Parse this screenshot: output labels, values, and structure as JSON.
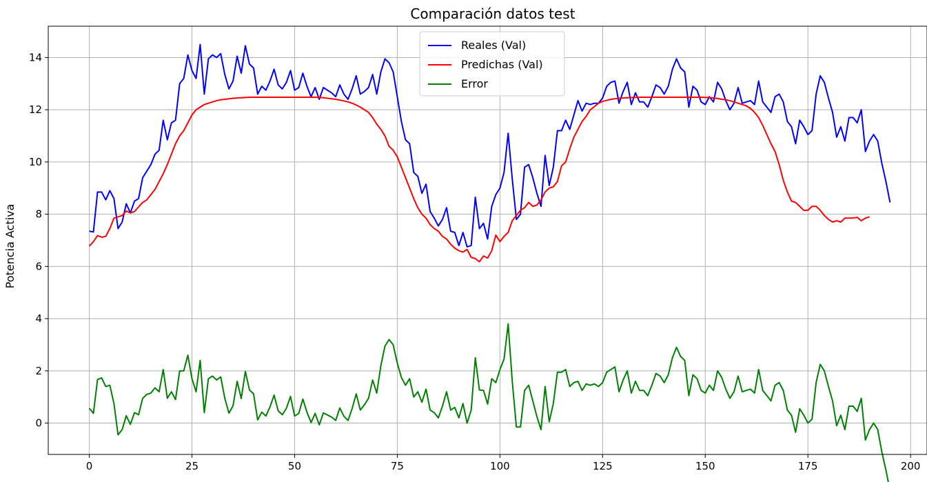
{
  "chart_data": {
    "type": "line",
    "title": "Comparación datos test",
    "xlabel": "",
    "ylabel": "Potencia Activa",
    "xlim": [
      -10,
      204
    ],
    "ylim": [
      -1.2,
      15.2
    ],
    "xticks": [
      0,
      25,
      50,
      75,
      100,
      125,
      150,
      175,
      200
    ],
    "yticks": [
      0,
      2,
      4,
      6,
      8,
      10,
      12,
      14
    ],
    "grid": true,
    "legend": "top-center",
    "series": [
      {
        "name": "Reales (Val)",
        "color": "#0000ff",
        "values": [
          7.35,
          7.32,
          8.85,
          8.85,
          8.55,
          8.9,
          8.6,
          7.45,
          7.7,
          8.4,
          8.05,
          8.5,
          8.6,
          9.4,
          9.65,
          9.9,
          10.3,
          10.45,
          11.6,
          10.85,
          11.5,
          11.6,
          13.0,
          13.2,
          14.1,
          13.5,
          13.2,
          14.5,
          12.6,
          13.95,
          14.1,
          14.0,
          14.15,
          13.35,
          12.8,
          13.1,
          14.05,
          13.4,
          14.45,
          13.75,
          13.6,
          12.6,
          12.9,
          12.75,
          13.1,
          13.55,
          12.95,
          12.8,
          13.05,
          13.5,
          12.75,
          12.85,
          13.4,
          12.9,
          12.5,
          12.85,
          12.4,
          12.85,
          12.75,
          12.65,
          12.5,
          12.95,
          12.6,
          12.4,
          12.8,
          13.3,
          12.6,
          12.7,
          12.85,
          13.35,
          12.6,
          13.45,
          13.95,
          13.8,
          13.45,
          12.5,
          11.55,
          10.85,
          10.7,
          9.6,
          9.45,
          8.8,
          9.15,
          8.1,
          7.85,
          7.55,
          7.8,
          8.25,
          7.35,
          7.3,
          6.8,
          7.3,
          6.75,
          6.8,
          8.65,
          7.45,
          7.65,
          7.05,
          8.3,
          8.75,
          9.0,
          9.6,
          11.1,
          9.35,
          7.8,
          8.0,
          9.8,
          9.9,
          9.4,
          8.8,
          8.3,
          10.25,
          9.1,
          9.8,
          11.2,
          11.2,
          11.6,
          11.25,
          11.8,
          12.35,
          11.95,
          12.25,
          12.2,
          12.25,
          12.25,
          12.45,
          12.9,
          13.05,
          13.1,
          12.25,
          12.7,
          13.05,
          12.2,
          12.65,
          12.3,
          12.3,
          12.1,
          12.5,
          12.95,
          12.85,
          12.6,
          12.9,
          13.55,
          13.95,
          13.6,
          13.45,
          12.1,
          12.9,
          12.75,
          12.3,
          12.2,
          12.5,
          12.3,
          13.05,
          12.8,
          12.35,
          12.0,
          12.25,
          12.85,
          12.25,
          12.3,
          12.35,
          12.2,
          13.1,
          12.3,
          12.1,
          11.9,
          12.5,
          12.6,
          12.3,
          11.55,
          11.35,
          10.7,
          11.6,
          11.35,
          11.05,
          11.2,
          12.6,
          13.3,
          13.05,
          12.45,
          11.9,
          10.95,
          11.35,
          10.8,
          11.7,
          11.7,
          11.5,
          12.0,
          10.4,
          10.8,
          11.05,
          10.8,
          9.95,
          9.25,
          8.45
        ]
      },
      {
        "name": "Predichas (Val)",
        "color": "#ff0000",
        "values": [
          6.78,
          6.95,
          7.18,
          7.12,
          7.15,
          7.45,
          7.85,
          7.9,
          7.95,
          8.12,
          8.05,
          8.1,
          8.28,
          8.45,
          8.55,
          8.75,
          8.95,
          9.25,
          9.55,
          9.9,
          10.3,
          10.7,
          11.0,
          11.2,
          11.5,
          11.8,
          12.0,
          12.1,
          12.2,
          12.25,
          12.3,
          12.35,
          12.38,
          12.4,
          12.42,
          12.44,
          12.45,
          12.46,
          12.47,
          12.48,
          12.48,
          12.48,
          12.48,
          12.48,
          12.48,
          12.48,
          12.48,
          12.48,
          12.48,
          12.48,
          12.48,
          12.48,
          12.48,
          12.48,
          12.48,
          12.48,
          12.47,
          12.46,
          12.44,
          12.42,
          12.4,
          12.37,
          12.34,
          12.3,
          12.25,
          12.18,
          12.1,
          12.0,
          11.9,
          11.7,
          11.45,
          11.25,
          11.0,
          10.6,
          10.45,
          10.2,
          9.8,
          9.4,
          9.0,
          8.6,
          8.25,
          8.0,
          7.85,
          7.6,
          7.45,
          7.35,
          7.15,
          7.05,
          6.85,
          6.7,
          6.6,
          6.55,
          6.65,
          6.35,
          6.3,
          6.18,
          6.4,
          6.32,
          6.6,
          7.2,
          6.95,
          7.15,
          7.3,
          7.75,
          7.95,
          8.15,
          8.25,
          8.45,
          8.3,
          8.35,
          8.55,
          8.85,
          9.0,
          9.05,
          9.25,
          9.85,
          10.0,
          10.5,
          10.95,
          11.25,
          11.55,
          11.75,
          12.0,
          12.12,
          12.25,
          12.32,
          12.36,
          12.4,
          12.42,
          12.44,
          12.45,
          12.46,
          12.47,
          12.47,
          12.48,
          12.48,
          12.48,
          12.48,
          12.48,
          12.48,
          12.48,
          12.48,
          12.48,
          12.48,
          12.48,
          12.48,
          12.48,
          12.48,
          12.48,
          12.48,
          12.47,
          12.47,
          12.45,
          12.43,
          12.4,
          12.38,
          12.35,
          12.3,
          12.25,
          12.2,
          12.15,
          12.05,
          11.9,
          11.7,
          11.4,
          11.05,
          10.7,
          10.4,
          9.9,
          9.3,
          8.85,
          8.5,
          8.45,
          8.3,
          8.15,
          8.15,
          8.3,
          8.3,
          8.15,
          7.95,
          7.8,
          7.7,
          7.75,
          7.7,
          7.85,
          7.85,
          7.85,
          7.88,
          7.75,
          7.85,
          7.9
        ]
      },
      {
        "name": "Error",
        "color": "#008000",
        "values": [
          0.57,
          0.37,
          1.67,
          1.73,
          1.4,
          1.45,
          0.75,
          -0.45,
          -0.25,
          0.28,
          -0.05,
          0.4,
          0.32,
          0.95,
          1.1,
          1.15,
          1.35,
          1.2,
          2.05,
          0.95,
          1.2,
          0.9,
          2.0,
          2.0,
          2.6,
          1.7,
          1.2,
          2.4,
          0.4,
          1.7,
          1.8,
          1.65,
          1.77,
          0.95,
          0.38,
          0.66,
          1.6,
          0.94,
          1.98,
          1.27,
          1.12,
          0.12,
          0.42,
          0.27,
          0.62,
          1.07,
          0.47,
          0.32,
          0.57,
          1.02,
          0.27,
          0.37,
          0.92,
          0.42,
          0.02,
          0.37,
          -0.07,
          0.39,
          0.31,
          0.23,
          0.1,
          0.58,
          0.26,
          0.1,
          0.55,
          1.12,
          0.5,
          0.7,
          0.95,
          1.65,
          1.15,
          2.2,
          2.95,
          3.2,
          3.0,
          2.3,
          1.75,
          1.45,
          1.7,
          1.0,
          1.2,
          0.8,
          1.3,
          0.5,
          0.4,
          0.2,
          0.65,
          1.2,
          0.5,
          0.6,
          0.2,
          0.75,
          0.0,
          0.5,
          2.5,
          1.27,
          1.25,
          0.73,
          1.7,
          1.55,
          2.05,
          2.45,
          3.8,
          1.6,
          -0.15,
          -0.15,
          1.25,
          1.45,
          0.85,
          0.25,
          -0.25,
          1.4,
          0.05,
          0.75,
          1.95,
          1.95,
          2.05,
          1.4,
          1.55,
          1.6,
          1.25,
          1.5,
          1.45,
          1.5,
          1.4,
          1.55,
          1.95,
          2.05,
          2.15,
          1.2,
          1.65,
          2.0,
          1.15,
          1.6,
          1.25,
          1.25,
          1.05,
          1.45,
          1.9,
          1.8,
          1.55,
          1.85,
          2.5,
          2.9,
          2.55,
          2.4,
          1.05,
          1.85,
          1.7,
          1.25,
          1.15,
          1.45,
          1.25,
          2.0,
          1.75,
          1.3,
          0.95,
          1.2,
          1.8,
          1.2,
          1.25,
          1.3,
          1.15,
          2.05,
          1.25,
          1.05,
          0.85,
          1.45,
          1.55,
          1.25,
          0.5,
          0.3,
          -0.35,
          0.55,
          0.3,
          0.0,
          0.15,
          1.55,
          2.25,
          2.0,
          1.4,
          0.85,
          -0.1,
          0.3,
          -0.25,
          0.65,
          0.65,
          0.45,
          0.95,
          -0.65,
          -0.25,
          0.0,
          -0.25,
          -1.1,
          -1.8,
          -2.6
        ]
      }
    ]
  }
}
